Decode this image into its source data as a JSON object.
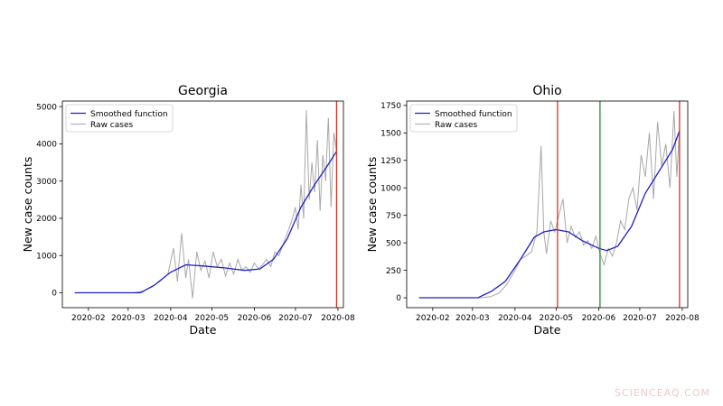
{
  "watermark": "SCIENCEAQ.COM",
  "chart_data": [
    {
      "type": "line",
      "title": "Georgia",
      "xlabel": "Date",
      "ylabel": "New case counts",
      "legend": "top-left",
      "legend_entries": [
        "Smoothed function",
        "Raw cases"
      ],
      "x_ticks": [
        "2020-02",
        "2020-03",
        "2020-04",
        "2020-05",
        "2020-06",
        "2020-07",
        "2020-08"
      ],
      "y_ticks": [
        0,
        1000,
        2000,
        3000,
        4000,
        5000
      ],
      "ylim": [
        -400,
        5150
      ],
      "xlim": [
        "2020-01-13",
        "2020-08-05"
      ],
      "colors": {
        "smoothed": "#1f1fcc",
        "raw": "#a8a8a8",
        "vline": "#e0301e"
      },
      "vlines": [
        "2020-07-31"
      ],
      "series": [
        {
          "name": "Smoothed function",
          "x": [
            "2020-01-22",
            "2020-03-01",
            "2020-03-10",
            "2020-03-20",
            "2020-04-01",
            "2020-04-12",
            "2020-04-25",
            "2020-05-10",
            "2020-05-25",
            "2020-06-05",
            "2020-06-15",
            "2020-06-25",
            "2020-07-05",
            "2020-07-15",
            "2020-07-25",
            "2020-07-31"
          ],
          "y": [
            0,
            0,
            0,
            200,
            550,
            750,
            720,
            670,
            600,
            640,
            900,
            1450,
            2300,
            2900,
            3450,
            3800
          ]
        },
        {
          "name": "Raw cases",
          "x": [
            "2020-01-22",
            "2020-03-05",
            "2020-03-12",
            "2020-03-18",
            "2020-03-24",
            "2020-03-30",
            "2020-04-03",
            "2020-04-06",
            "2020-04-09",
            "2020-04-12",
            "2020-04-14",
            "2020-04-17",
            "2020-04-20",
            "2020-04-23",
            "2020-04-26",
            "2020-04-29",
            "2020-05-02",
            "2020-05-05",
            "2020-05-08",
            "2020-05-11",
            "2020-05-14",
            "2020-05-17",
            "2020-05-20",
            "2020-05-23",
            "2020-05-26",
            "2020-05-29",
            "2020-06-01",
            "2020-06-04",
            "2020-06-07",
            "2020-06-10",
            "2020-06-13",
            "2020-06-16",
            "2020-06-19",
            "2020-06-22",
            "2020-06-25",
            "2020-06-28",
            "2020-07-01",
            "2020-07-03",
            "2020-07-05",
            "2020-07-07",
            "2020-07-09",
            "2020-07-11",
            "2020-07-13",
            "2020-07-15",
            "2020-07-17",
            "2020-07-19",
            "2020-07-21",
            "2020-07-23",
            "2020-07-25",
            "2020-07-27",
            "2020-07-29",
            "2020-07-31"
          ],
          "y": [
            0,
            0,
            50,
            150,
            300,
            500,
            1200,
            300,
            1600,
            400,
            900,
            -150,
            1100,
            600,
            850,
            400,
            1100,
            700,
            900,
            450,
            800,
            500,
            900,
            600,
            700,
            550,
            800,
            650,
            750,
            900,
            700,
            1100,
            1000,
            1300,
            1600,
            1900,
            2300,
            1700,
            2900,
            2000,
            4900,
            2500,
            3500,
            2700,
            4100,
            2200,
            3700,
            3000,
            4700,
            2300,
            4300,
            3800
          ]
        }
      ]
    },
    {
      "type": "line",
      "title": "Ohio",
      "xlabel": "Date",
      "ylabel": "New case counts",
      "legend": "top-left",
      "legend_entries": [
        "Smoothed function",
        "Raw cases"
      ],
      "x_ticks": [
        "2020-02",
        "2020-03",
        "2020-04",
        "2020-05",
        "2020-06",
        "2020-07",
        "2020-08"
      ],
      "y_ticks": [
        0,
        250,
        500,
        750,
        1000,
        1250,
        1500,
        1750
      ],
      "ylim": [
        -90,
        1790
      ],
      "xlim": [
        "2020-01-13",
        "2020-08-05"
      ],
      "colors": {
        "smoothed": "#1f1fcc",
        "raw": "#a8a8a8",
        "vline_red": "#e0301e",
        "vline_green": "#2e8b2e"
      },
      "vlines": [
        "2020-05-02",
        "2020-06-02",
        "2020-07-30"
      ],
      "series": [
        {
          "name": "Smoothed function",
          "x": [
            "2020-01-22",
            "2020-03-05",
            "2020-03-15",
            "2020-03-25",
            "2020-04-05",
            "2020-04-15",
            "2020-04-22",
            "2020-05-01",
            "2020-05-10",
            "2020-05-20",
            "2020-06-01",
            "2020-06-07",
            "2020-06-15",
            "2020-06-25",
            "2020-07-05",
            "2020-07-15",
            "2020-07-25",
            "2020-07-30"
          ],
          "y": [
            0,
            0,
            60,
            150,
            350,
            550,
            600,
            620,
            600,
            520,
            450,
            430,
            470,
            650,
            950,
            1150,
            1350,
            1520
          ]
        },
        {
          "name": "Raw cases",
          "x": [
            "2020-01-22",
            "2020-03-08",
            "2020-03-14",
            "2020-03-20",
            "2020-03-26",
            "2020-04-01",
            "2020-04-05",
            "2020-04-09",
            "2020-04-13",
            "2020-04-17",
            "2020-04-20",
            "2020-04-22",
            "2020-04-24",
            "2020-04-27",
            "2020-04-30",
            "2020-05-03",
            "2020-05-06",
            "2020-05-09",
            "2020-05-12",
            "2020-05-15",
            "2020-05-18",
            "2020-05-21",
            "2020-05-24",
            "2020-05-27",
            "2020-05-30",
            "2020-06-02",
            "2020-06-05",
            "2020-06-08",
            "2020-06-11",
            "2020-06-14",
            "2020-06-17",
            "2020-06-20",
            "2020-06-23",
            "2020-06-26",
            "2020-06-29",
            "2020-07-02",
            "2020-07-05",
            "2020-07-08",
            "2020-07-11",
            "2020-07-14",
            "2020-07-17",
            "2020-07-20",
            "2020-07-23",
            "2020-07-26",
            "2020-07-28",
            "2020-07-30"
          ],
          "y": [
            0,
            0,
            10,
            40,
            120,
            250,
            350,
            380,
            420,
            600,
            1380,
            600,
            400,
            700,
            600,
            750,
            900,
            500,
            650,
            550,
            600,
            480,
            520,
            450,
            560,
            400,
            300,
            450,
            380,
            500,
            700,
            620,
            900,
            1000,
            800,
            1300,
            1100,
            1500,
            900,
            1600,
            1200,
            1400,
            1000,
            1700,
            1100,
            1550
          ]
        }
      ]
    }
  ]
}
